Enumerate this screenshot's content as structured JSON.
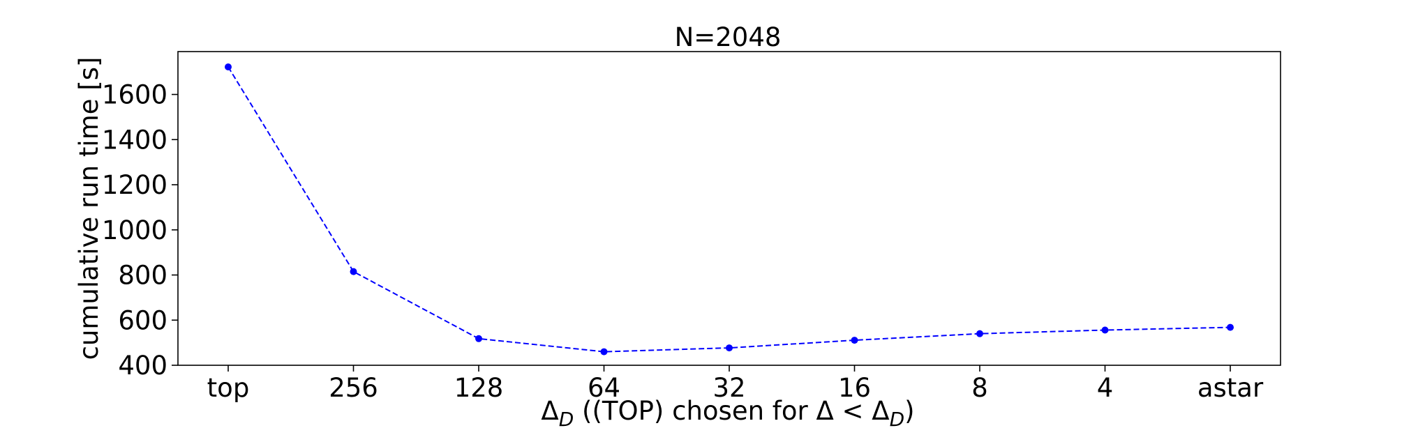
{
  "chart_data": {
    "type": "line",
    "title": "N=2048",
    "xlabel": {
      "delta": "Δ",
      "sub": "D",
      "middle": " ((TOP) chosen for Δ < Δ",
      "sub2": "D",
      "end": ")"
    },
    "ylabel": "cumulative run time [s]",
    "categories": [
      "top",
      "256",
      "128",
      "64",
      "32",
      "16",
      "8",
      "4",
      "astar"
    ],
    "series": [
      {
        "values": [
          1722,
          815,
          518,
          460,
          477,
          511,
          540,
          556,
          568
        ],
        "color": "#0000ff",
        "line_style": "dashed",
        "marker": "circle"
      }
    ],
    "ylim": [
      400,
      1790
    ],
    "yticks": [
      400,
      600,
      800,
      1000,
      1200,
      1400,
      1600
    ],
    "grid": false,
    "legend": "none"
  }
}
